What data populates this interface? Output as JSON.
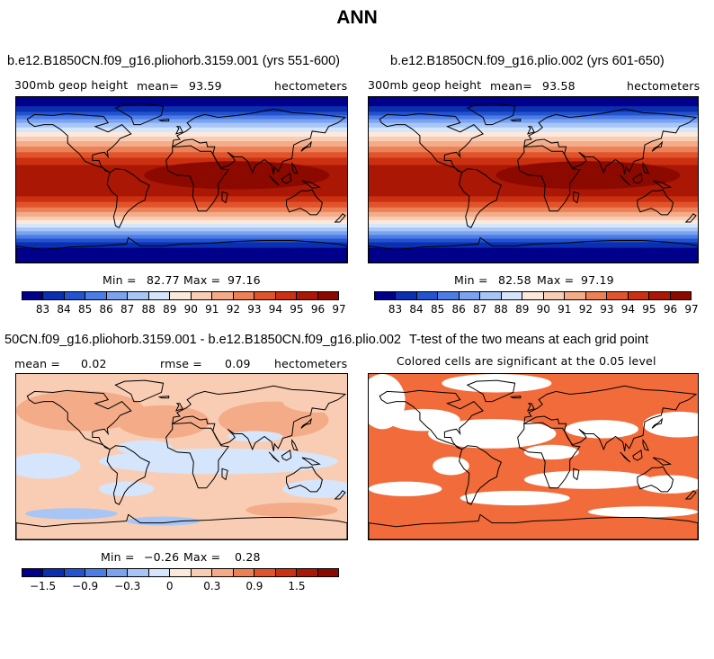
{
  "figure_title": "ANN",
  "colors": {
    "diverging": [
      "#00008b",
      "#0a2fb0",
      "#2353cf",
      "#4c7ce6",
      "#7ba3f0",
      "#a7c6f6",
      "#d5e5fb",
      "#fde9dc",
      "#f9cdb4",
      "#f4ab88",
      "#ec8056",
      "#e1542b",
      "#cb3010",
      "#aa1705",
      "#8c0900"
    ],
    "significant": "#f26b3a",
    "land_outline": "#000000"
  },
  "panel1": {
    "case": "b.e12.B1850CN.f09_g16.pliohorb.3159.001 (yrs 551-600)",
    "variable": "300mb geop height",
    "mean_label": "mean=",
    "mean_value": "93.59",
    "units": "hectometers",
    "min_label": "Min =",
    "min_value": "82.77",
    "max_label": "Max =",
    "max_value": "97.16"
  },
  "panel2": {
    "case": "b.e12.B1850CN.f09_g16.plio.002 (yrs 601-650)",
    "variable": "300mb geop height",
    "mean_label": "mean=",
    "mean_value": "93.58",
    "units": "hectometers",
    "min_label": "Min =",
    "min_value": "82.58",
    "max_label": "Max =",
    "max_value": "97.19"
  },
  "panel3": {
    "case": "50CN.f09_g16.pliohorb.3159.001 - b.e12.B1850CN.f09_g16.plio.002",
    "mean_label": "mean =",
    "mean_value": "0.02",
    "rmse_label": "rmse =",
    "rmse_value": "0.09",
    "units": "hectometers",
    "min_label": "Min =",
    "min_value": "−0.26",
    "max_label": "Max =",
    "max_value": "0.28"
  },
  "panel4": {
    "title": "T-test of the two means at each grid point",
    "subtitle": "Colored cells are significant at the 0.05 level"
  },
  "colorbar_abs_labels": [
    "83",
    "84",
    "85",
    "86",
    "87",
    "88",
    "89",
    "90",
    "91",
    "92",
    "93",
    "94",
    "95",
    "96",
    "97"
  ],
  "colorbar_diff_labels": [
    "−1.5",
    "−0.9",
    "−0.3",
    "0",
    "0.3",
    "0.9",
    "1.5"
  ]
}
